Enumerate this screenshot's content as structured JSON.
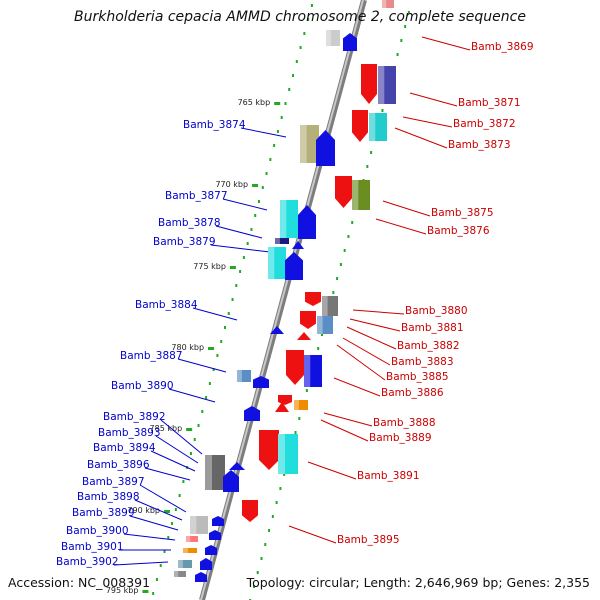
{
  "title": "Burkholderia cepacia AMMD chromosome 2, complete sequence",
  "accession": "Accession: NC_008391",
  "topology": "Topology: circular; Length: 2,646,969 bp; Genes: 2,355",
  "scale": {
    "ticks": [
      {
        "label": "765 kbp"
      },
      {
        "label": "770 kbp"
      },
      {
        "label": "775 kbp"
      },
      {
        "label": "780 kbp"
      },
      {
        "label": "785 kbp"
      },
      {
        "label": "790 kbp"
      },
      {
        "label": "795 kbp"
      }
    ]
  },
  "colors": {
    "forward_label": "#0000cc",
    "reverse_label": "#cc0000",
    "backbone": "#8a8a8a",
    "ticks": "#22aa22"
  },
  "genes_forward": [
    {
      "label": "Bamb_3874"
    },
    {
      "label": "Bamb_3877"
    },
    {
      "label": "Bamb_3878"
    },
    {
      "label": "Bamb_3879"
    },
    {
      "label": "Bamb_3884"
    },
    {
      "label": "Bamb_3887"
    },
    {
      "label": "Bamb_3890"
    },
    {
      "label": "Bamb_3892"
    },
    {
      "label": "Bamb_3893"
    },
    {
      "label": "Bamb_3894"
    },
    {
      "label": "Bamb_3896"
    },
    {
      "label": "Bamb_3897"
    },
    {
      "label": "Bamb_3898"
    },
    {
      "label": "Bamb_3899"
    },
    {
      "label": "Bamb_3900"
    },
    {
      "label": "Bamb_3901"
    },
    {
      "label": "Bamb_3902"
    }
  ],
  "genes_reverse": [
    {
      "label": "Bamb_3869"
    },
    {
      "label": "Bamb_3871"
    },
    {
      "label": "Bamb_3872"
    },
    {
      "label": "Bamb_3873"
    },
    {
      "label": "Bamb_3875"
    },
    {
      "label": "Bamb_3876"
    },
    {
      "label": "Bamb_3880"
    },
    {
      "label": "Bamb_3881"
    },
    {
      "label": "Bamb_3882"
    },
    {
      "label": "Bamb_3883"
    },
    {
      "label": "Bamb_3885"
    },
    {
      "label": "Bamb_3886"
    },
    {
      "label": "Bamb_3888"
    },
    {
      "label": "Bamb_3889"
    },
    {
      "label": "Bamb_3891"
    },
    {
      "label": "Bamb_3895"
    }
  ]
}
